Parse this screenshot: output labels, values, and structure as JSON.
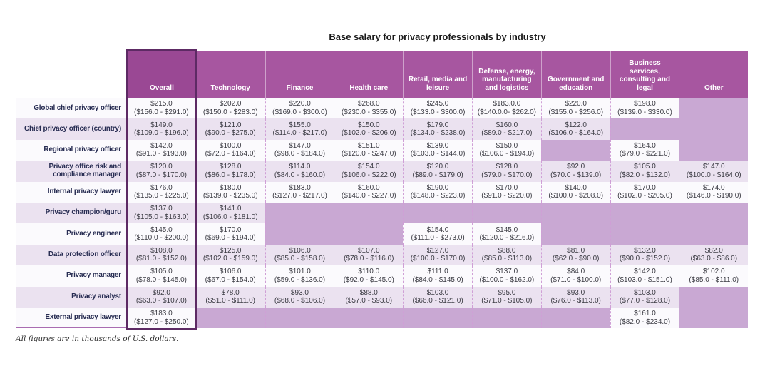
{
  "title": "Base salary for privacy professionals by industry",
  "footnote": "All figures are in thousands of U.S. dollars.",
  "colors": {
    "header": "#a756a0",
    "header_overall": "#9a4894",
    "highlight_border": "#5d2a64",
    "empty_cell": "#c9a8d3",
    "row_odd": "#fbfafd",
    "row_even": "#ebe2f0",
    "sep_dash": "#cf9fd6",
    "label_outline": "#a96cb1",
    "label_text": "#272c52",
    "value_text": "#3c3c44",
    "title_text": "#1a1a1a",
    "footnote_text": "#2e2e2e"
  },
  "chart_data": {
    "type": "table",
    "title": "Base salary for privacy professionals by industry",
    "units": "thousands of U.S. dollars",
    "columns": [
      "Overall",
      "Technology",
      "Finance",
      "Health care",
      "Retail, media and leisure",
      "Defense, energy, manufacturing and logistics",
      "Government and education",
      "Business services, consulting and legal",
      "Other"
    ],
    "rows": [
      {
        "label": "Global chief privacy officer",
        "cells": [
          {
            "v": "$215.0",
            "r": "($156.0 - $291.0)"
          },
          {
            "v": "$202.0",
            "r": "($150.0 - $283.0)"
          },
          {
            "v": "$220.0",
            "r": "($169.0 - $300.0)"
          },
          {
            "v": "$268.0",
            "r": "($230.0 - $355.0)"
          },
          {
            "v": "$245.0",
            "r": "($133.0 - $300.0)"
          },
          {
            "v": "$183.0.0",
            "r": "($140.0.0- $262.0)"
          },
          {
            "v": "$220.0",
            "r": "($155.0 - $256.0)"
          },
          {
            "v": "$198.0",
            "r": "($139.0 - $330.0)"
          },
          null
        ]
      },
      {
        "label": "Chief privacy officer (country)",
        "cells": [
          {
            "v": "$149.0",
            "r": "($109.0 - $196.0)"
          },
          {
            "v": "$121.0",
            "r": "($90.0 - $275.0)"
          },
          {
            "v": "$155.0",
            "r": "($114.0 - $217.0)"
          },
          {
            "v": "$150.0",
            "r": "($102.0 - $206.0)"
          },
          {
            "v": "$179.0",
            "r": "($134.0 - $238.0)"
          },
          {
            "v": "$160.0",
            "r": "($89.0 - $217.0)"
          },
          {
            "v": "$122.0",
            "r": "($106.0 - $164.0)"
          },
          null,
          null
        ]
      },
      {
        "label": "Regional privacy officer",
        "cells": [
          {
            "v": "$142.0",
            "r": "($91.0 - $193.0)"
          },
          {
            "v": "$100.0",
            "r": "($72.0 - $164.0)"
          },
          {
            "v": "$147.0",
            "r": "($98.0 - $184.0)"
          },
          {
            "v": "$151.0",
            "r": "($120.0 - $247.0)"
          },
          {
            "v": "$139.0",
            "r": "($103.0 - $144.0)"
          },
          {
            "v": "$150.0",
            "r": "($106.0 - $194.0)"
          },
          null,
          {
            "v": "$164.0",
            "r": "($79.0 - $221.0)"
          },
          null
        ]
      },
      {
        "label": "Privacy office risk and compliance manager",
        "cells": [
          {
            "v": "$120.0",
            "r": "($87.0 - $170.0)"
          },
          {
            "v": "$128.0",
            "r": "($86.0 - $178.0)"
          },
          {
            "v": "$114.0",
            "r": "($84.0 - $160.0)"
          },
          {
            "v": "$154.0",
            "r": "($106.0 - $222.0)"
          },
          {
            "v": "$120.0",
            "r": "($89.0 - $179.0)"
          },
          {
            "v": "$128.0",
            "r": "($79.0 - $170.0)"
          },
          {
            "v": "$92.0",
            "r": "($70.0 - $139.0)"
          },
          {
            "v": "$105.0",
            "r": "($82.0 - $132.0)"
          },
          {
            "v": "$147.0",
            "r": "($100.0 - $164.0)"
          }
        ]
      },
      {
        "label": "Internal privacy lawyer",
        "cells": [
          {
            "v": "$176.0",
            "r": "($135.0 - $225.0)"
          },
          {
            "v": "$180.0",
            "r": "($139.0 - $235.0)"
          },
          {
            "v": "$183.0",
            "r": "($127.0 - $217.0)"
          },
          {
            "v": "$160.0",
            "r": "($140.0 - $227.0)"
          },
          {
            "v": "$190.0",
            "r": "($148.0 - $223.0)"
          },
          {
            "v": "$170.0",
            "r": "($91.0 - $220.0)"
          },
          {
            "v": "$140.0",
            "r": "($100.0 - $208.0)"
          },
          {
            "v": "$170.0",
            "r": "($102.0 - $205.0)"
          },
          {
            "v": "$174.0",
            "r": "($146.0 - $190.0)"
          }
        ]
      },
      {
        "label": "Privacy champion/guru",
        "cells": [
          {
            "v": "$137.0",
            "r": "($105.0 - $163.0)"
          },
          {
            "v": "$141.0",
            "r": "($106.0 - $181.0)"
          },
          null,
          null,
          null,
          null,
          null,
          null,
          null
        ]
      },
      {
        "label": "Privacy engineer",
        "cells": [
          {
            "v": "$145.0",
            "r": "($110.0 - $200.0)"
          },
          {
            "v": "$170.0",
            "r": "($69.0 - $194.0)"
          },
          null,
          null,
          {
            "v": "$154.0",
            "r": "($111.0 - $273.0)"
          },
          {
            "v": "$145.0",
            "r": "($120.0 - $216.0)"
          },
          null,
          null,
          null
        ]
      },
      {
        "label": "Data protection officer",
        "cells": [
          {
            "v": "$108.0",
            "r": "($81.0 - $152.0)"
          },
          {
            "v": "$125.0",
            "r": "($102.0 - $159.0)"
          },
          {
            "v": "$106.0",
            "r": "($85.0 - $158.0)"
          },
          {
            "v": "$107.0",
            "r": "($78.0 - $116.0)"
          },
          {
            "v": "$127.0",
            "r": "($100.0 - $170.0)"
          },
          {
            "v": "$88.0",
            "r": "($85.0 - $113.0)"
          },
          {
            "v": "$81.0",
            "r": "($62.0 - $90.0)"
          },
          {
            "v": "$132.0",
            "r": "($90.0 - $152.0)"
          },
          {
            "v": "$82.0",
            "r": "($63.0 - $86.0)"
          }
        ]
      },
      {
        "label": "Privacy manager",
        "cells": [
          {
            "v": "$105.0",
            "r": "($78.0 - $145.0)"
          },
          {
            "v": "$106.0",
            "r": "($67.0 - $154.0)"
          },
          {
            "v": "$101.0",
            "r": "($59.0 - $136.0)"
          },
          {
            "v": "$110.0",
            "r": "($92.0 - $145.0)"
          },
          {
            "v": "$111.0",
            "r": "($84.0 - $145.0)"
          },
          {
            "v": "$137.0",
            "r": "($100.0 - $162.0)"
          },
          {
            "v": "$84.0",
            "r": "($71.0 - $100.0)"
          },
          {
            "v": "$142.0",
            "r": "($103.0 - $151.0)"
          },
          {
            "v": "$102.0",
            "r": "($85.0 - $111.0)"
          }
        ]
      },
      {
        "label": "Privacy analyst",
        "cells": [
          {
            "v": "$92.0",
            "r": "($63.0 - $107.0)"
          },
          {
            "v": "$78.0",
            "r": "($51.0 - $111.0)"
          },
          {
            "v": "$93.0",
            "r": "($68.0 - $106.0)"
          },
          {
            "v": "$88.0",
            "r": "($57.0 - $93.0)"
          },
          {
            "v": "$103.0",
            "r": "($66.0 - $121.0)"
          },
          {
            "v": "$95.0",
            "r": "($71.0 - $105.0)"
          },
          {
            "v": "$93.0",
            "r": "($76.0 - $113.0)"
          },
          {
            "v": "$103.0",
            "r": "($77.0 - $128.0)"
          },
          null
        ]
      },
      {
        "label": "External privacy lawyer",
        "cells": [
          {
            "v": "$183.0",
            "r": "($127.0 - $250.0)"
          },
          null,
          null,
          null,
          null,
          null,
          null,
          {
            "v": "$161.0",
            "r": "($82.0 - $234.0)"
          },
          null
        ]
      }
    ]
  }
}
